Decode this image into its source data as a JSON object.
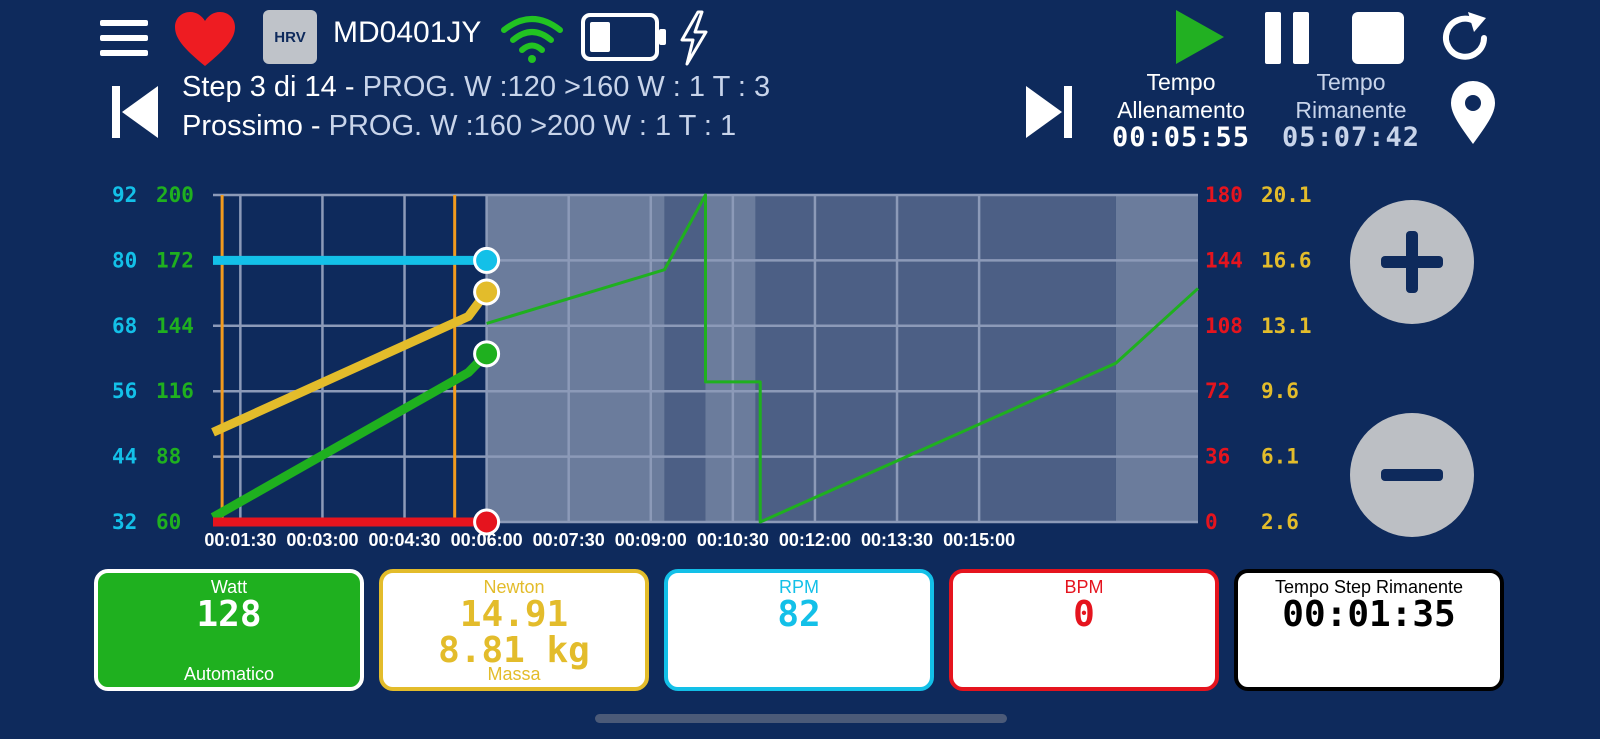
{
  "header": {
    "hrv_label": "HRV",
    "device_name": "MD0401JY",
    "icons": [
      "menu-icon",
      "heart-icon",
      "wifi-icon",
      "battery-icon",
      "lightning-icon",
      "play-icon",
      "pause-icon",
      "stop-icon",
      "refresh-icon",
      "location-pin-icon",
      "skip-back-icon",
      "skip-forward-icon"
    ]
  },
  "step": {
    "current_prefix": "Step 3 di 14 - ",
    "current_detail": "PROG. W :120 >160  W : 1 T : 3",
    "next_prefix": "Prossimo - ",
    "next_detail": "PROG. W :160 >200  W : 1 T : 1"
  },
  "training_time": {
    "label_line1": "Tempo",
    "label_line2": "Allenamento",
    "value": "00:05:55"
  },
  "remaining_time": {
    "label_line1": "Tempo",
    "label_line2": "Rimanente",
    "value": "05:07:42"
  },
  "colors": {
    "bg": "#0e2a5c",
    "watt": "#1fb01f",
    "newton": "#e3bc2b",
    "rpm": "#13c0e8",
    "bpm": "#e5141e",
    "grey": "#bcbfc4"
  },
  "chart_data": {
    "type": "line",
    "x_ticks": [
      "00:01:30",
      "00:03:00",
      "00:04:30",
      "00:06:00",
      "00:07:30",
      "00:09:00",
      "00:10:30",
      "00:12:00",
      "00:13:30",
      "00:15:00"
    ],
    "x_range_seconds": [
      60,
      1140
    ],
    "current_time_seconds": 360,
    "axes": {
      "rpm_left": {
        "ticks": [
          "92",
          "80",
          "68",
          "56",
          "44",
          "32"
        ],
        "range": [
          32,
          92
        ]
      },
      "watt_left": {
        "ticks": [
          "200",
          "172",
          "144",
          "116",
          "88",
          "60"
        ],
        "range": [
          60,
          200
        ]
      },
      "bpm_right": {
        "ticks": [
          "180",
          "144",
          "108",
          "72",
          "36",
          "0"
        ],
        "range": [
          0,
          180
        ]
      },
      "newton_right": {
        "ticks": [
          "20.1",
          "16.6",
          "13.1",
          "9.6",
          "6.1",
          "2.6"
        ],
        "range": [
          2.6,
          20.1
        ]
      }
    },
    "series": [
      {
        "key": "program_watt",
        "axis": "watt_left",
        "points": [
          [
            360,
            145
          ],
          [
            555,
            168
          ],
          [
            600,
            200
          ],
          [
            600,
            120
          ],
          [
            660,
            120
          ],
          [
            660,
            60
          ],
          [
            1050,
            128
          ],
          [
            1140,
            160
          ]
        ]
      },
      {
        "key": "watt",
        "axis": "watt_left",
        "points": [
          [
            60,
            62
          ],
          [
            340,
            124
          ],
          [
            360,
            132
          ]
        ]
      },
      {
        "key": "newton",
        "axis": "newton_right",
        "points": [
          [
            60,
            7.4
          ],
          [
            340,
            13.6
          ],
          [
            360,
            14.91
          ]
        ]
      },
      {
        "key": "rpm",
        "axis": "rpm_left",
        "points": [
          [
            60,
            80
          ],
          [
            360,
            80
          ]
        ]
      },
      {
        "key": "bpm",
        "axis": "bpm_right",
        "points": [
          [
            60,
            0
          ],
          [
            360,
            0
          ]
        ]
      }
    ],
    "markers": [
      70,
      325
    ],
    "future_bands": [
      [
        360,
        555,
        "light"
      ],
      [
        555,
        600,
        "dark"
      ],
      [
        600,
        655,
        "light"
      ],
      [
        655,
        1050,
        "dark"
      ],
      [
        1050,
        1140,
        "light"
      ]
    ]
  },
  "cards": {
    "watt": {
      "label": "Watt",
      "value": "128",
      "footer": "Automatico"
    },
    "newton": {
      "label": "Newton",
      "value": "14.91",
      "value2": "8.81 kg",
      "footer": "Massa"
    },
    "rpm": {
      "label": "RPM",
      "value": "82"
    },
    "bpm": {
      "label": "BPM",
      "value": "0"
    },
    "step_time": {
      "label": "Tempo Step Rimanente",
      "value": "00:01:35"
    }
  }
}
